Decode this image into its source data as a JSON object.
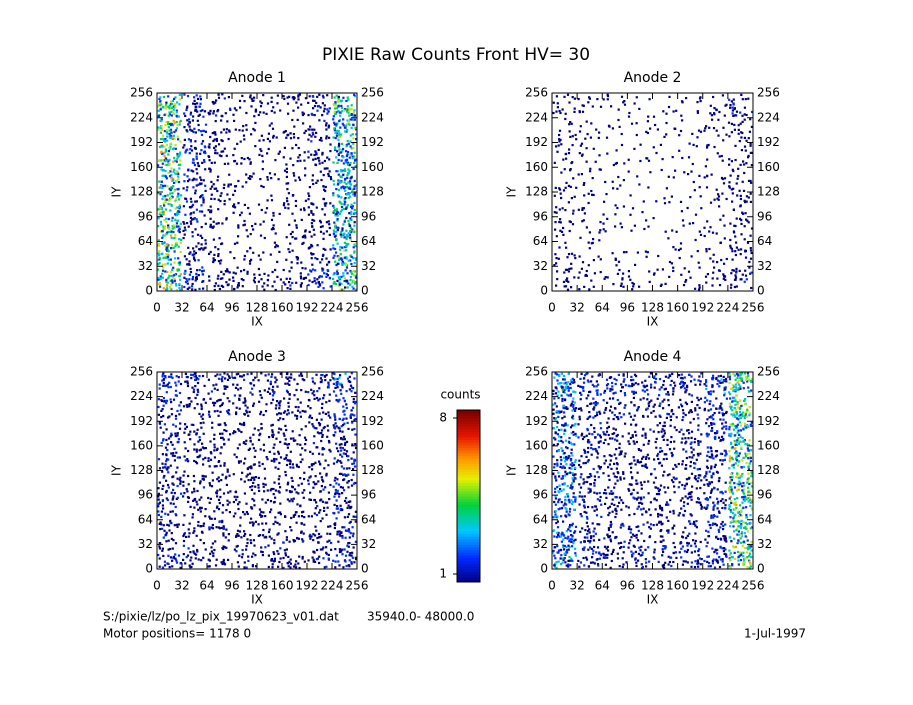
{
  "title": "PIXIE Raw Counts Front HV= 30",
  "chart_data": [
    {
      "type": "heatmap",
      "title": "Anode 1",
      "xlabel": "IX",
      "ylabel": "IY",
      "xlim": [
        0,
        256
      ],
      "ylim": [
        0,
        256
      ],
      "xticks": [
        0,
        32,
        64,
        96,
        128,
        160,
        192,
        224,
        256
      ],
      "yticks": [
        0,
        32,
        64,
        96,
        128,
        160,
        192,
        224,
        256
      ],
      "values": [
        [
          3.8,
          1.6,
          1.0,
          0.9,
          0.8,
          1.0,
          1.4,
          3.2
        ],
        [
          3.6,
          1.2,
          0.7,
          0.5,
          0.4,
          0.6,
          1.0,
          3.0
        ],
        [
          3.5,
          1.1,
          0.6,
          0.5,
          0.4,
          0.7,
          0.9,
          2.9
        ],
        [
          3.6,
          1.2,
          0.7,
          0.5,
          0.4,
          0.7,
          0.9,
          2.8
        ],
        [
          3.7,
          1.3,
          0.8,
          0.5,
          0.4,
          0.6,
          0.9,
          2.8
        ],
        [
          3.8,
          1.4,
          0.9,
          0.6,
          0.4,
          0.6,
          1.0,
          2.9
        ],
        [
          3.6,
          1.3,
          0.9,
          0.6,
          0.5,
          0.7,
          1.1,
          3.0
        ],
        [
          3.5,
          1.4,
          1.0,
          0.8,
          0.7,
          0.9,
          1.3,
          3.1
        ]
      ]
    },
    {
      "type": "heatmap",
      "title": "Anode 2",
      "xlabel": "IX",
      "ylabel": "IY",
      "xlim": [
        0,
        256
      ],
      "ylim": [
        0,
        256
      ],
      "xticks": [
        0,
        32,
        64,
        96,
        128,
        160,
        192,
        224,
        256
      ],
      "yticks": [
        0,
        32,
        64,
        96,
        128,
        160,
        192,
        224,
        256
      ],
      "values": [
        [
          0.8,
          0.6,
          0.5,
          0.4,
          0.4,
          0.5,
          0.7,
          1.1
        ],
        [
          0.6,
          0.4,
          0.3,
          0.2,
          0.2,
          0.3,
          0.5,
          0.9
        ],
        [
          0.6,
          0.4,
          0.3,
          0.2,
          0.2,
          0.3,
          0.4,
          0.8
        ],
        [
          0.6,
          0.4,
          0.3,
          0.2,
          0.2,
          0.3,
          0.4,
          0.8
        ],
        [
          0.6,
          0.4,
          0.3,
          0.2,
          0.2,
          0.3,
          0.4,
          0.8
        ],
        [
          0.6,
          0.4,
          0.3,
          0.3,
          0.2,
          0.3,
          0.4,
          0.8
        ],
        [
          0.6,
          0.4,
          0.3,
          0.3,
          0.3,
          0.3,
          0.5,
          0.9
        ],
        [
          0.7,
          0.5,
          0.4,
          0.3,
          0.3,
          0.4,
          0.6,
          1.1
        ]
      ]
    },
    {
      "type": "heatmap",
      "title": "Anode 3",
      "xlabel": "IX",
      "ylabel": "IY",
      "xlim": [
        0,
        256
      ],
      "ylim": [
        0,
        256
      ],
      "xticks": [
        0,
        32,
        64,
        96,
        128,
        160,
        192,
        224,
        256
      ],
      "yticks": [
        0,
        32,
        64,
        96,
        128,
        160,
        192,
        224,
        256
      ],
      "values": [
        [
          1.3,
          1.1,
          1.0,
          1.0,
          1.0,
          1.0,
          1.1,
          1.5
        ],
        [
          1.2,
          1.0,
          1.0,
          0.9,
          0.9,
          1.0,
          1.0,
          1.4
        ],
        [
          1.2,
          1.0,
          0.9,
          0.9,
          0.9,
          0.9,
          1.0,
          1.4
        ],
        [
          1.2,
          1.0,
          0.9,
          0.9,
          0.9,
          0.9,
          1.0,
          1.4
        ],
        [
          1.2,
          1.0,
          0.9,
          0.9,
          0.9,
          0.9,
          1.0,
          1.4
        ],
        [
          1.2,
          1.0,
          0.9,
          0.9,
          0.9,
          0.9,
          1.0,
          1.4
        ],
        [
          1.2,
          1.0,
          1.0,
          0.9,
          0.9,
          1.0,
          1.0,
          1.5
        ],
        [
          1.4,
          1.2,
          1.1,
          1.1,
          1.1,
          1.1,
          1.2,
          1.7
        ]
      ]
    },
    {
      "type": "heatmap",
      "title": "Anode 4",
      "xlabel": "IX",
      "ylabel": "IY",
      "xlim": [
        0,
        256
      ],
      "ylim": [
        0,
        256
      ],
      "xticks": [
        0,
        32,
        64,
        96,
        128,
        160,
        192,
        224,
        256
      ],
      "yticks": [
        0,
        32,
        64,
        96,
        128,
        160,
        192,
        224,
        256
      ],
      "values": [
        [
          2.3,
          1.4,
          1.2,
          1.2,
          1.2,
          1.3,
          1.6,
          3.5
        ],
        [
          2.0,
          1.2,
          1.1,
          1.0,
          1.0,
          1.1,
          1.4,
          3.5
        ],
        [
          2.0,
          1.2,
          1.0,
          1.0,
          1.0,
          1.1,
          1.4,
          3.6
        ],
        [
          2.0,
          1.2,
          1.0,
          1.0,
          1.0,
          1.1,
          1.4,
          3.7
        ],
        [
          2.0,
          1.2,
          1.0,
          1.0,
          1.0,
          1.1,
          1.4,
          3.7
        ],
        [
          2.0,
          1.2,
          1.0,
          1.0,
          1.0,
          1.1,
          1.4,
          3.6
        ],
        [
          2.1,
          1.2,
          1.1,
          1.0,
          1.0,
          1.1,
          1.5,
          3.6
        ],
        [
          2.4,
          1.5,
          1.3,
          1.3,
          1.3,
          1.4,
          1.7,
          3.6
        ]
      ]
    }
  ],
  "colorbar": {
    "label": "counts",
    "lim": [
      1,
      8
    ],
    "ticks": [
      1,
      8
    ]
  },
  "footer": {
    "file": "S:/pixie/lz/po_lz_pix_19970623_v01.dat",
    "range": "35940.0- 48000.0",
    "motor": "Motor positions= 1178 0",
    "date": "1-Jul-1997"
  }
}
